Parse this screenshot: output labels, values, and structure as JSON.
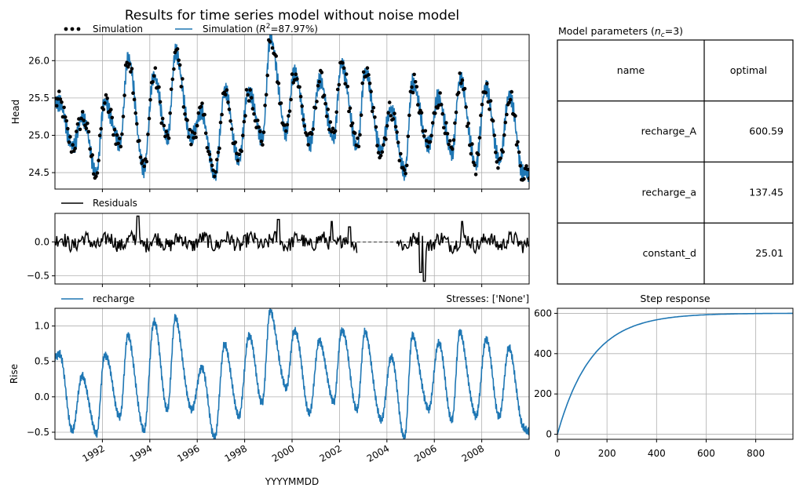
{
  "figure": {
    "title": "Results for time series model without noise model"
  },
  "chart_data": [
    {
      "id": "head",
      "type": "line",
      "ylabel": "Head",
      "xlim": [
        "1990-01-01",
        "2009-12-31"
      ],
      "ylim": [
        24.28,
        26.35
      ],
      "yticks": [
        "24.5",
        "25.0",
        "25.5",
        "26.0"
      ],
      "grid": true,
      "legend": [
        "Simulation",
        "Simulation (R²=87.97%)"
      ],
      "series": [
        {
          "name": "Simulation",
          "style": "points",
          "color": "#000000"
        },
        {
          "name": "Simulation (R²=87.97%)",
          "style": "line",
          "color": "#1f77b4"
        }
      ],
      "seasonal_peaks": [
        [
          "1990-03",
          25.45
        ],
        [
          "1991-03",
          25.25
        ],
        [
          "1992-02",
          25.45
        ],
        [
          "1993-02",
          26.05
        ],
        [
          "1994-03",
          25.8
        ],
        [
          "1995-02",
          26.1
        ],
        [
          "1996-03",
          25.3
        ],
        [
          "1997-03",
          25.6
        ],
        [
          "1998-03",
          25.6
        ],
        [
          "1999-02",
          26.3
        ],
        [
          "2000-02",
          25.85
        ],
        [
          "2001-03",
          25.75
        ],
        [
          "2002-02",
          25.95
        ],
        [
          "2003-02",
          25.85
        ],
        [
          "2004-03",
          25.35
        ],
        [
          "2005-02",
          25.7
        ],
        [
          "2006-03",
          25.5
        ],
        [
          "2007-02",
          25.75
        ],
        [
          "2008-03",
          25.65
        ],
        [
          "2009-03",
          25.55
        ]
      ],
      "seasonal_troughs": [
        [
          "1990-10",
          24.85
        ],
        [
          "1991-10",
          24.5
        ],
        [
          "1992-10",
          24.9
        ],
        [
          "1993-10",
          24.55
        ],
        [
          "1994-10",
          24.95
        ],
        [
          "1995-10",
          24.95
        ],
        [
          "1996-10",
          24.45
        ],
        [
          "1997-10",
          24.65
        ],
        [
          "1998-10",
          24.95
        ],
        [
          "1999-10",
          25.05
        ],
        [
          "2000-10",
          24.9
        ],
        [
          "2001-10",
          24.95
        ],
        [
          "2002-10",
          24.85
        ],
        [
          "2003-10",
          24.8
        ],
        [
          "2004-10",
          24.5
        ],
        [
          "2005-10",
          24.85
        ],
        [
          "2006-10",
          24.75
        ],
        [
          "2007-10",
          24.6
        ],
        [
          "2008-10",
          24.65
        ],
        [
          "2009-10",
          24.5
        ]
      ]
    },
    {
      "id": "residuals",
      "type": "line",
      "ylim": [
        -0.62,
        0.42
      ],
      "yticks": [
        "-0.5",
        "0.0"
      ],
      "grid": true,
      "legend": [
        "Residuals"
      ],
      "series": [
        {
          "name": "Residuals",
          "color": "#000000"
        }
      ],
      "gap": [
        "2002-10",
        "2004-06"
      ],
      "features": [
        [
          "1993-07",
          0.38
        ],
        [
          "1999-06",
          0.33
        ],
        [
          "2001-09",
          0.3
        ],
        [
          "2002-06",
          0.22
        ],
        [
          "2005-06",
          -0.45
        ],
        [
          "2005-08",
          -0.58
        ],
        [
          "2007-03",
          0.3
        ]
      ]
    },
    {
      "id": "recharge",
      "type": "line",
      "ylabel": "Rise",
      "xlabel": "YYYYMMDD",
      "xlim": [
        "1990-01-01",
        "2009-12-31"
      ],
      "ylim": [
        -0.6,
        1.25
      ],
      "yticks": [
        "-0.5",
        "0.0",
        "0.5",
        "1.0"
      ],
      "xticks": [
        "1992",
        "1994",
        "1996",
        "1998",
        "2000",
        "2002",
        "2004",
        "2006",
        "2008"
      ],
      "grid": true,
      "legend": [
        "recharge"
      ],
      "annotation": "Stresses: ['None']",
      "series": [
        {
          "name": "recharge",
          "color": "#1f77b4"
        }
      ],
      "seasonal_peaks": [
        [
          "1990-03",
          0.6
        ],
        [
          "1991-03",
          0.3
        ],
        [
          "1992-02",
          0.6
        ],
        [
          "1993-02",
          0.85
        ],
        [
          "1994-03",
          1.05
        ],
        [
          "1995-02",
          1.1
        ],
        [
          "1996-03",
          0.4
        ],
        [
          "1997-03",
          0.75
        ],
        [
          "1998-03",
          0.85
        ],
        [
          "1999-02",
          1.2
        ],
        [
          "2000-02",
          0.95
        ],
        [
          "2001-03",
          0.8
        ],
        [
          "2002-02",
          0.95
        ],
        [
          "2003-02",
          0.9
        ],
        [
          "2004-03",
          0.55
        ],
        [
          "2005-02",
          0.85
        ],
        [
          "2006-03",
          0.75
        ],
        [
          "2007-02",
          0.9
        ],
        [
          "2008-03",
          0.8
        ],
        [
          "2009-03",
          0.7
        ]
      ],
      "seasonal_troughs": [
        [
          "1990-10",
          -0.45
        ],
        [
          "1991-10",
          -0.55
        ],
        [
          "1992-10",
          -0.25
        ],
        [
          "1993-10",
          -0.5
        ],
        [
          "1994-10",
          -0.15
        ],
        [
          "1995-10",
          -0.2
        ],
        [
          "1996-10",
          -0.55
        ],
        [
          "1997-10",
          -0.3
        ],
        [
          "1998-10",
          -0.05
        ],
        [
          "1999-10",
          0.1
        ],
        [
          "2000-10",
          -0.2
        ],
        [
          "2001-10",
          -0.1
        ],
        [
          "2002-10",
          -0.15
        ],
        [
          "2003-10",
          -0.35
        ],
        [
          "2004-10",
          -0.55
        ],
        [
          "2005-10",
          -0.2
        ],
        [
          "2006-10",
          -0.3
        ],
        [
          "2007-10",
          -0.3
        ],
        [
          "2008-10",
          -0.25
        ],
        [
          "2009-10",
          -0.45
        ]
      ]
    },
    {
      "id": "step",
      "type": "line",
      "title": "Step response",
      "xlim": [
        0,
        950
      ],
      "ylim": [
        -25,
        625
      ],
      "xticks": [
        "0",
        "200",
        "400",
        "600",
        "800"
      ],
      "yticks": [
        "0",
        "200",
        "400",
        "600"
      ],
      "grid": true,
      "function": {
        "A": 600.59,
        "a": 137.45
      },
      "series": [
        {
          "name": "step",
          "color": "#1f77b4"
        }
      ]
    },
    {
      "id": "params",
      "type": "table",
      "title": "Model parameters (nc=3)",
      "columns": [
        "name",
        "optimal"
      ],
      "rows": [
        [
          "recharge_A",
          "600.59"
        ],
        [
          "recharge_a",
          "137.45"
        ],
        [
          "constant_d",
          "25.01"
        ]
      ]
    }
  ]
}
